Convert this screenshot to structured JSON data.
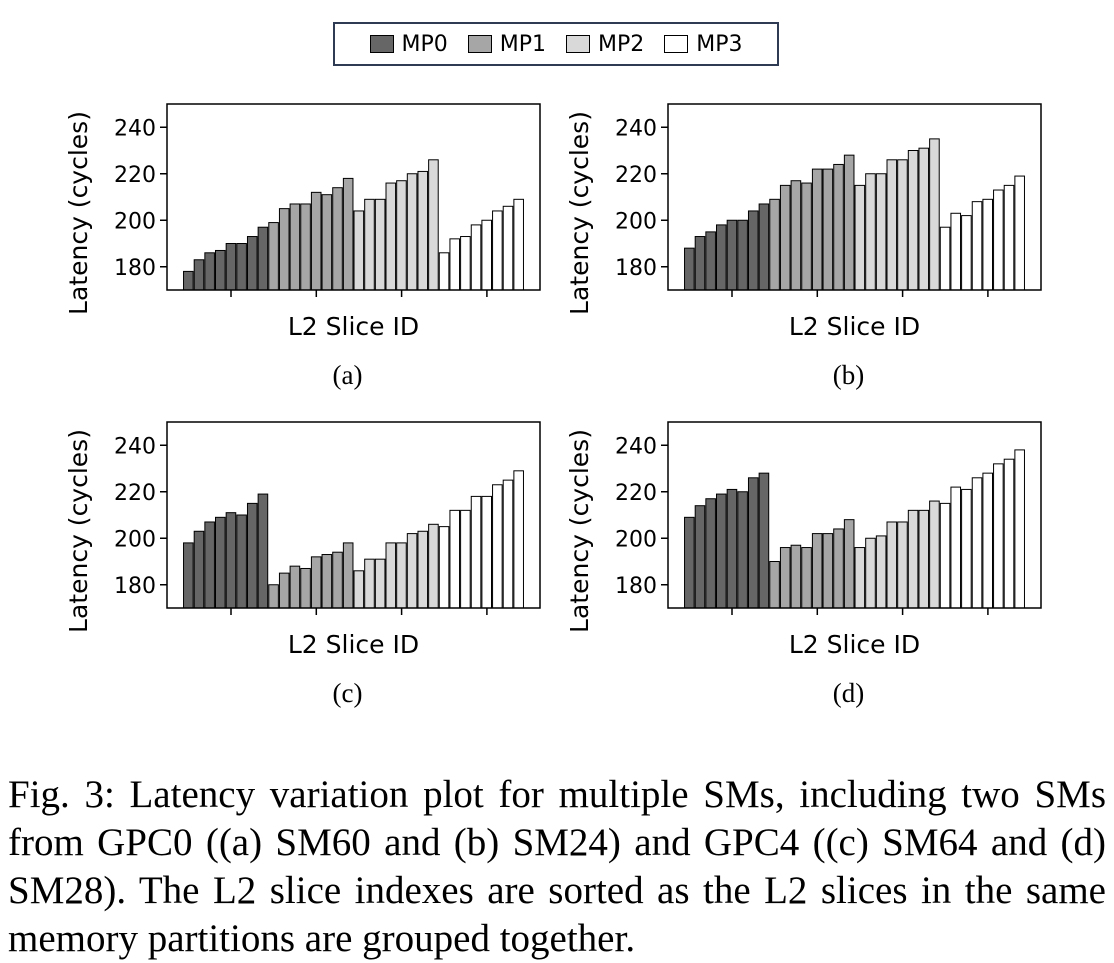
{
  "legend": [
    {
      "label": "MP0",
      "color": "#666666"
    },
    {
      "label": "MP1",
      "color": "#a6a6a6"
    },
    {
      "label": "MP2",
      "color": "#d9d9d9"
    },
    {
      "label": "MP3",
      "color": "#ffffff"
    }
  ],
  "caption": "Fig. 3: Latency variation plot for multiple SMs, including two SMs from GPC0 ((a) SM60 and (b) SM24) and GPC4 ((c) SM64 and (d) SM28). The L2 slice indexes are sorted as the L2 slices in the same memory partitions are grouped together.",
  "chart_data": [
    {
      "type": "bar",
      "sublabel": "(a)",
      "xlabel": "L2 Slice ID",
      "ylabel": "Latency (cycles)",
      "ylim": [
        170,
        250
      ],
      "yticks": [
        180,
        200,
        220,
        240
      ],
      "series": [
        {
          "name": "MP0",
          "values": [
            178,
            183,
            186,
            187,
            190,
            190,
            193,
            197
          ]
        },
        {
          "name": "MP1",
          "values": [
            199,
            205,
            207,
            207,
            212,
            211,
            214,
            218
          ]
        },
        {
          "name": "MP2",
          "values": [
            204,
            209,
            209,
            216,
            217,
            220,
            221,
            226
          ]
        },
        {
          "name": "MP3",
          "values": [
            186,
            192,
            193,
            198,
            200,
            204,
            206,
            209
          ]
        }
      ]
    },
    {
      "type": "bar",
      "sublabel": "(b)",
      "xlabel": "L2 Slice ID",
      "ylabel": "Latency (cycles)",
      "ylim": [
        170,
        250
      ],
      "yticks": [
        180,
        200,
        220,
        240
      ],
      "series": [
        {
          "name": "MP0",
          "values": [
            188,
            193,
            195,
            198,
            200,
            200,
            204,
            207
          ]
        },
        {
          "name": "MP1",
          "values": [
            209,
            215,
            217,
            216,
            222,
            222,
            224,
            228
          ]
        },
        {
          "name": "MP2",
          "values": [
            215,
            220,
            220,
            226,
            226,
            230,
            231,
            235
          ]
        },
        {
          "name": "MP3",
          "values": [
            197,
            203,
            202,
            208,
            209,
            213,
            215,
            219
          ]
        }
      ]
    },
    {
      "type": "bar",
      "sublabel": "(c)",
      "xlabel": "L2 Slice ID",
      "ylabel": "Latency (cycles)",
      "ylim": [
        170,
        250
      ],
      "yticks": [
        180,
        200,
        220,
        240
      ],
      "series": [
        {
          "name": "MP0",
          "values": [
            198,
            203,
            207,
            209,
            211,
            210,
            215,
            219
          ]
        },
        {
          "name": "MP1",
          "values": [
            180,
            185,
            188,
            187,
            192,
            193,
            194,
            198
          ]
        },
        {
          "name": "MP2",
          "values": [
            186,
            191,
            191,
            198,
            198,
            202,
            203,
            206
          ]
        },
        {
          "name": "MP3",
          "values": [
            205,
            212,
            212,
            218,
            218,
            223,
            225,
            229
          ]
        }
      ]
    },
    {
      "type": "bar",
      "sublabel": "(d)",
      "xlabel": "L2 Slice ID",
      "ylabel": "Latency (cycles)",
      "ylim": [
        170,
        250
      ],
      "yticks": [
        180,
        200,
        220,
        240
      ],
      "series": [
        {
          "name": "MP0",
          "values": [
            209,
            214,
            217,
            219,
            221,
            220,
            226,
            228
          ]
        },
        {
          "name": "MP1",
          "values": [
            190,
            196,
            197,
            196,
            202,
            202,
            204,
            208
          ]
        },
        {
          "name": "MP2",
          "values": [
            196,
            200,
            201,
            207,
            207,
            212,
            212,
            216
          ]
        },
        {
          "name": "MP3",
          "values": [
            215,
            222,
            221,
            226,
            228,
            232,
            234,
            238
          ]
        }
      ]
    }
  ]
}
